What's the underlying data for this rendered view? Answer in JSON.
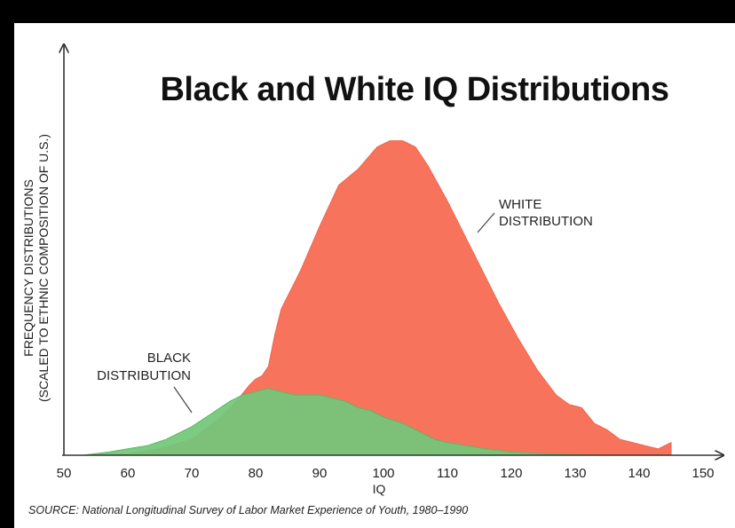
{
  "chart_data": {
    "type": "area",
    "title": "Black and White IQ Distributions",
    "xlabel": "IQ",
    "ylabel_line1": "FREQUENCY DISTRIBUTIONS",
    "ylabel_line2": "(SCALED TO ETHNIC COMPOSITION OF U.S.)",
    "xlim": [
      50,
      150
    ],
    "ylim": [
      0,
      100
    ],
    "x_ticks": [
      50,
      60,
      70,
      80,
      90,
      100,
      110,
      120,
      130,
      140,
      150
    ],
    "grid": false,
    "series": [
      {
        "name": "White",
        "annotation_line1": "WHITE",
        "annotation_line2": "DISTRIBUTION",
        "color": "#f7735c",
        "x": [
          53,
          60,
          65,
          70,
          74,
          77,
          79,
          80,
          81,
          82,
          83,
          84,
          87,
          90,
          93,
          96,
          99,
          101,
          103,
          105,
          107,
          110,
          112,
          115,
          118,
          121,
          124,
          127,
          129,
          131,
          133,
          135,
          137,
          139,
          141,
          143,
          145
        ],
        "values": [
          0,
          0.5,
          2,
          5,
          11,
          17,
          22,
          24,
          25,
          28,
          38,
          46,
          58,
          72,
          85,
          90,
          97,
          99,
          99,
          97,
          91,
          80,
          72,
          60,
          48,
          37,
          27,
          19,
          16,
          15,
          10,
          8,
          5,
          4,
          3,
          2,
          4
        ]
      },
      {
        "name": "Black",
        "annotation_line1": "BLACK",
        "annotation_line2": "DISTRIBUTION",
        "color": "#72c77a",
        "x": [
          53,
          57,
          60,
          63,
          66,
          70,
          73,
          76,
          78,
          80,
          82,
          84,
          86,
          88,
          90,
          92,
          94,
          96,
          98,
          100,
          103,
          106,
          108,
          110,
          113,
          116,
          120,
          125,
          130,
          135
        ],
        "values": [
          0,
          1,
          2,
          3,
          5,
          9,
          13,
          17,
          19,
          20,
          21,
          20,
          19,
          19,
          19,
          18,
          17,
          15,
          14,
          12,
          10,
          7,
          5,
          4,
          3,
          2,
          1,
          0.5,
          0.2,
          0
        ]
      }
    ],
    "source": "SOURCE: National Longitudinal Survey of Labor Market Experience of Youth, 1980–1990"
  }
}
